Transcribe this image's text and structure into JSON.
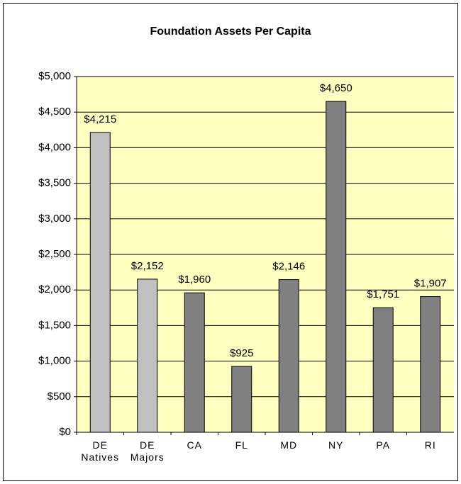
{
  "chart_data": {
    "type": "bar",
    "title": "Foundation Assets Per Capita",
    "categories": [
      "DE Natives",
      "DE Majors",
      "CA",
      "FL",
      "MD",
      "NY",
      "PA",
      "RI"
    ],
    "values": [
      4215,
      2152,
      1960,
      925,
      2146,
      4650,
      1751,
      1907
    ],
    "value_labels": [
      "$4,215",
      "$2,152",
      "$1,960",
      "$925",
      "$2,146",
      "$4,650",
      "$1,751",
      "$1,907"
    ],
    "colors": [
      "#c0c0c0",
      "#c0c0c0",
      "#808080",
      "#808080",
      "#808080",
      "#808080",
      "#808080",
      "#808080"
    ],
    "ylim": [
      0,
      5000
    ],
    "yticks": [
      {
        "value": 0,
        "label": "$0"
      },
      {
        "value": 500,
        "label": "$500"
      },
      {
        "value": 1000,
        "label": "$1,000"
      },
      {
        "value": 1500,
        "label": "$1,500"
      },
      {
        "value": 2000,
        "label": "$2,000"
      },
      {
        "value": 2500,
        "label": "$2,500"
      },
      {
        "value": 3000,
        "label": "$3,000"
      },
      {
        "value": 3500,
        "label": "$3,500"
      },
      {
        "value": 4000,
        "label": "$4,000"
      },
      {
        "value": 4500,
        "label": "$4,500"
      },
      {
        "value": 5000,
        "label": "$5,000"
      }
    ],
    "grid": true
  }
}
